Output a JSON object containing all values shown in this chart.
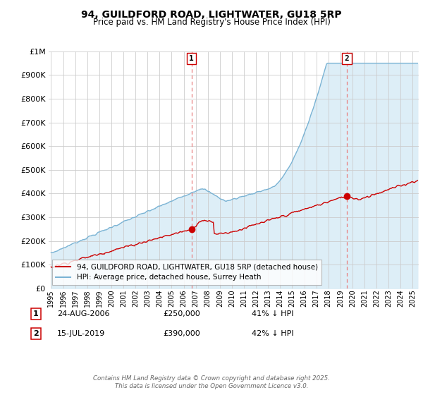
{
  "title": "94, GUILDFORD ROAD, LIGHTWATER, GU18 5RP",
  "subtitle": "Price paid vs. HM Land Registry's House Price Index (HPI)",
  "ytick_values": [
    0,
    100000,
    200000,
    300000,
    400000,
    500000,
    600000,
    700000,
    800000,
    900000,
    1000000
  ],
  "ylim": [
    0,
    1000000
  ],
  "xlim_start": 1994.8,
  "xlim_end": 2025.5,
  "hpi_color": "#7ab3d4",
  "hpi_fill_color": "#ddeef7",
  "price_color": "#cc0000",
  "dashed_color": "#e88080",
  "grid_color": "#cccccc",
  "bg_color": "#ffffff",
  "sale1_x": 2006.65,
  "sale1_y": 250000,
  "sale2_x": 2019.54,
  "sale2_y": 390000,
  "marker_size": 6,
  "legend_label_price": "94, GUILDFORD ROAD, LIGHTWATER, GU18 5RP (detached house)",
  "legend_label_hpi": "HPI: Average price, detached house, Surrey Heath",
  "footer": "Contains HM Land Registry data © Crown copyright and database right 2025.\nThis data is licensed under the Open Government Licence v3.0.",
  "xtick_years": [
    1995,
    1996,
    1997,
    1998,
    1999,
    2000,
    2001,
    2002,
    2003,
    2004,
    2005,
    2006,
    2007,
    2008,
    2009,
    2010,
    2011,
    2012,
    2013,
    2014,
    2015,
    2016,
    2017,
    2018,
    2019,
    2020,
    2021,
    2022,
    2023,
    2024,
    2025
  ]
}
